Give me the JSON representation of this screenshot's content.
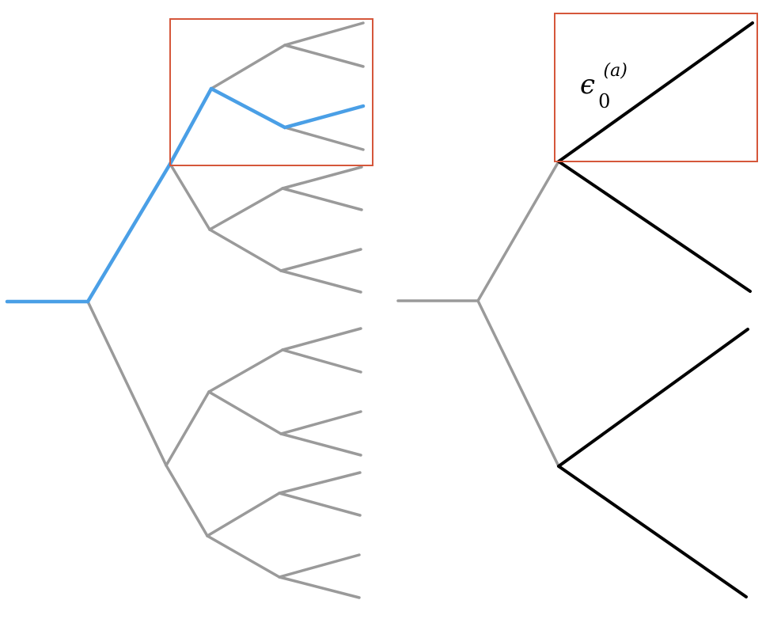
{
  "label": {
    "symbol": "ϵ",
    "subscript": "0",
    "superscript": "(a)"
  },
  "colors": {
    "tree_edge": "#9a9a9a",
    "highlighted_path": "#4a9fe6",
    "subtree_edge": "#000000",
    "highlight_box": "#d5573b"
  }
}
